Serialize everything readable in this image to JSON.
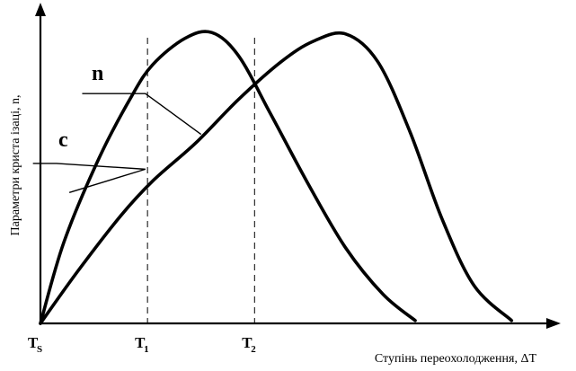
{
  "chart_data": {
    "type": "line",
    "title": "",
    "xlabel": "Ступінь переохолодження, ΔT",
    "ylabel": "Параметри криста ізаці, n,",
    "grid": false,
    "x_ticks": [
      {
        "label_main": "T",
        "label_sub": "S",
        "value": 0
      },
      {
        "label_main": "T",
        "label_sub": "1",
        "value": 1
      },
      {
        "label_main": "T",
        "label_sub": "2",
        "value": 2
      }
    ],
    "xlim": [
      0,
      4.7
    ],
    "ylim": [
      0,
      1.05
    ],
    "series": [
      {
        "name": "c",
        "values": [
          [
            0,
            0
          ],
          [
            0.22,
            0.28
          ],
          [
            0.55,
            0.57
          ],
          [
            0.85,
            0.78
          ],
          [
            1.05,
            0.89
          ],
          [
            1.35,
            0.98
          ],
          [
            1.6,
            1.0
          ],
          [
            1.85,
            0.92
          ],
          [
            2.15,
            0.72
          ],
          [
            2.5,
            0.48
          ],
          [
            2.85,
            0.26
          ],
          [
            3.2,
            0.1
          ],
          [
            3.5,
            0.01
          ]
        ]
      },
      {
        "name": "n",
        "values": [
          [
            0,
            0
          ],
          [
            0.35,
            0.18
          ],
          [
            0.75,
            0.37
          ],
          [
            1.05,
            0.49
          ],
          [
            1.45,
            0.62
          ],
          [
            1.85,
            0.77
          ],
          [
            2.25,
            0.9
          ],
          [
            2.55,
            0.97
          ],
          [
            2.85,
            0.995
          ],
          [
            3.15,
            0.9
          ],
          [
            3.45,
            0.66
          ],
          [
            3.75,
            0.36
          ],
          [
            4.05,
            0.13
          ],
          [
            4.4,
            0.01
          ]
        ]
      }
    ],
    "series_labels": {
      "c": "c",
      "n": "n"
    },
    "annotations": [
      "T₁ and T₂ are marked with vertical dashed lines"
    ]
  }
}
